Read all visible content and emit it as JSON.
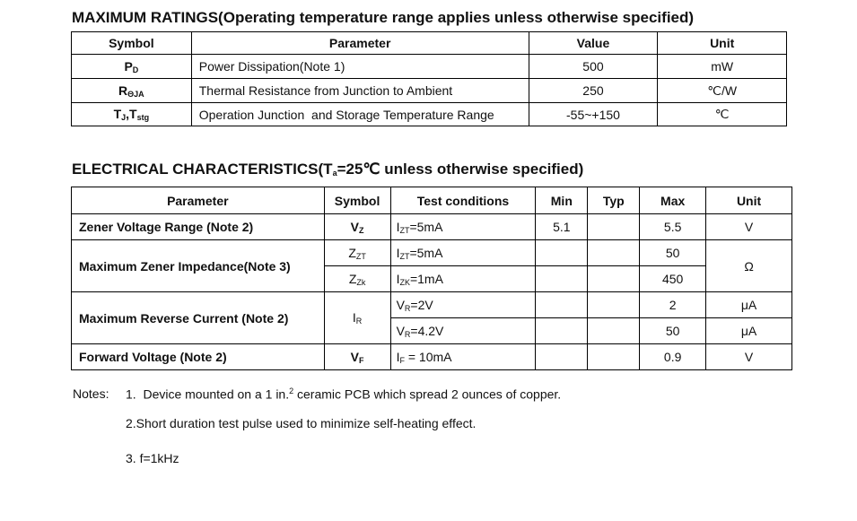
{
  "max_ratings": {
    "title": "MAXIMUM RATINGS(Operating temperature range applies unless otherwise specified)",
    "headers": [
      "Symbol",
      "Parameter",
      "Value",
      "Unit"
    ],
    "rows": [
      {
        "symbol": "P",
        "symbol_sub": "D",
        "symbol_2": "",
        "symbol_sub_2": "",
        "parameter": "Power Dissipation(Note 1)",
        "value": "500",
        "unit": "mW"
      },
      {
        "symbol": "R",
        "symbol_sub": "ΘJA",
        "symbol_2": "",
        "symbol_sub_2": "",
        "parameter": "Thermal Resistance from Junction to Ambient",
        "value": "250",
        "unit": "℃/W"
      },
      {
        "symbol": "T",
        "symbol_sub": "J",
        "symbol_2": ",T",
        "symbol_sub_2": "stg",
        "parameter": "Operation Junction  and Storage Temperature Range",
        "value": "-55~+150",
        "unit": "℃"
      }
    ]
  },
  "electrical": {
    "title_pre": "ELECTRICAL CHARACTERISTICS(T",
    "title_sub": "a",
    "title_post": "=25℃ unless otherwise specified)",
    "headers": [
      "Parameter",
      "Symbol",
      "Test conditions",
      "Min",
      "Typ",
      "Max",
      "Unit"
    ],
    "zener_voltage": {
      "parameter": "Zener Voltage Range (Note 2)",
      "symbol": "V",
      "symbol_sub": "Z",
      "cond": "I",
      "cond_sub": "ZT",
      "cond_val": "=5mA",
      "min": "5.1",
      "typ": "",
      "max": "5.5",
      "unit": "V"
    },
    "zener_impedance": {
      "parameter": "Maximum Zener Impedance(Note 3)",
      "unit": "Ω",
      "rows": [
        {
          "symbol": "Z",
          "symbol_sub": "ZT",
          "cond": "I",
          "cond_sub": "ZT",
          "cond_val": "=5mA",
          "min": "",
          "typ": "",
          "max": "50"
        },
        {
          "symbol": "Z",
          "symbol_sub": "Zk",
          "cond": "I",
          "cond_sub": "ZK",
          "cond_val": "=1mA",
          "min": "",
          "typ": "",
          "max": "450"
        }
      ]
    },
    "reverse_current": {
      "parameter": "Maximum Reverse Current (Note 2)",
      "symbol": "I",
      "symbol_sub": "R",
      "rows": [
        {
          "cond": "V",
          "cond_sub": "R",
          "cond_val": "=2V",
          "min": "",
          "typ": "",
          "max": "2",
          "unit": "μA"
        },
        {
          "cond": "V",
          "cond_sub": "R",
          "cond_val": "=4.2V",
          "min": "",
          "typ": "",
          "max": "50",
          "unit": "μA"
        }
      ]
    },
    "forward_voltage": {
      "parameter": "Forward Voltage (Note 2)",
      "symbol": "V",
      "symbol_sub": "F",
      "cond": "I",
      "cond_sub": "F",
      "cond_val": " = 10mA",
      "min": "",
      "typ": "",
      "max": "0.9",
      "unit": "V"
    }
  },
  "notes": {
    "label": "Notes:",
    "note1_pre": "1.  Device mounted on a 1 in.",
    "note1_sup": "2",
    "note1_post": " ceramic PCB which spread 2 ounces of copper.",
    "note2": "2.Short duration test pulse used to minimize self-heating effect.",
    "note3": "3. f=1kHz"
  }
}
